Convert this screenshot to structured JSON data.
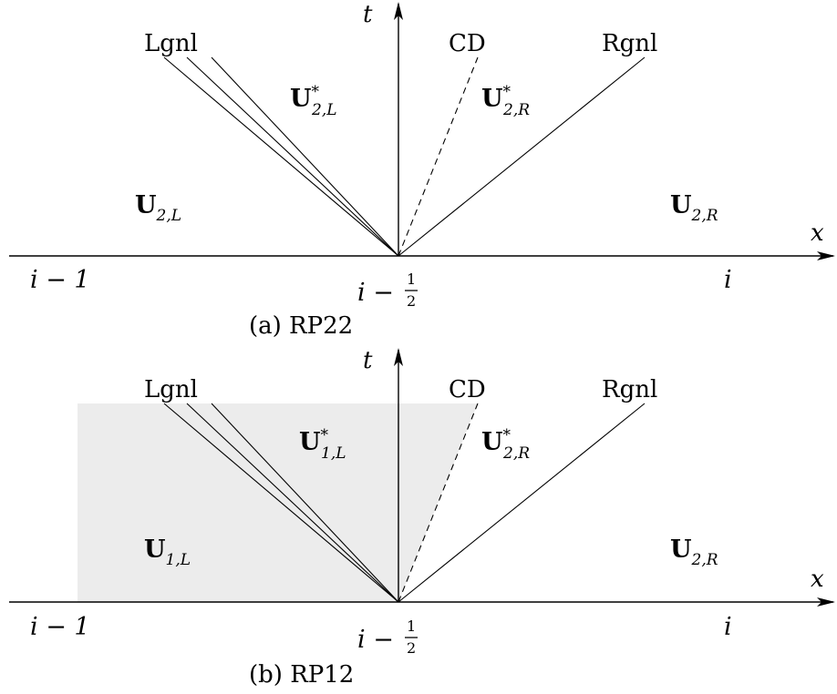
{
  "panels": [
    {
      "caption": "(a) RP22",
      "t_label": "t",
      "x_label": "x",
      "wave_labels": {
        "left": "Lgnl",
        "contact": "CD",
        "right": "Rgnl"
      },
      "ticks": {
        "left": "i − 1",
        "center_prefix": "i − ",
        "center_num": "1",
        "center_den": "2",
        "right": "i"
      },
      "states": {
        "left": {
          "base": "U",
          "sub": "2,L",
          "star": ""
        },
        "left_star": {
          "base": "U",
          "sub": "2,L",
          "star": "*"
        },
        "right_star": {
          "base": "U",
          "sub": "2,R",
          "star": "*"
        },
        "right": {
          "base": "U",
          "sub": "2,R",
          "star": ""
        }
      },
      "shaded": false
    },
    {
      "caption": "(b) RP12",
      "t_label": "t",
      "x_label": "x",
      "wave_labels": {
        "left": "Lgnl",
        "contact": "CD",
        "right": "Rgnl"
      },
      "ticks": {
        "left": "i − 1",
        "center_prefix": "i − ",
        "center_num": "1",
        "center_den": "2",
        "right": "i"
      },
      "states": {
        "left": {
          "base": "U",
          "sub": "1,L",
          "star": ""
        },
        "left_star": {
          "base": "U",
          "sub": "1,L",
          "star": "*"
        },
        "right_star": {
          "base": "U",
          "sub": "2,R",
          "star": "*"
        },
        "right": {
          "base": "U",
          "sub": "2,R",
          "star": ""
        }
      },
      "shaded": true
    }
  ],
  "colors": {
    "line": "#000000",
    "shade": "#ececec"
  }
}
